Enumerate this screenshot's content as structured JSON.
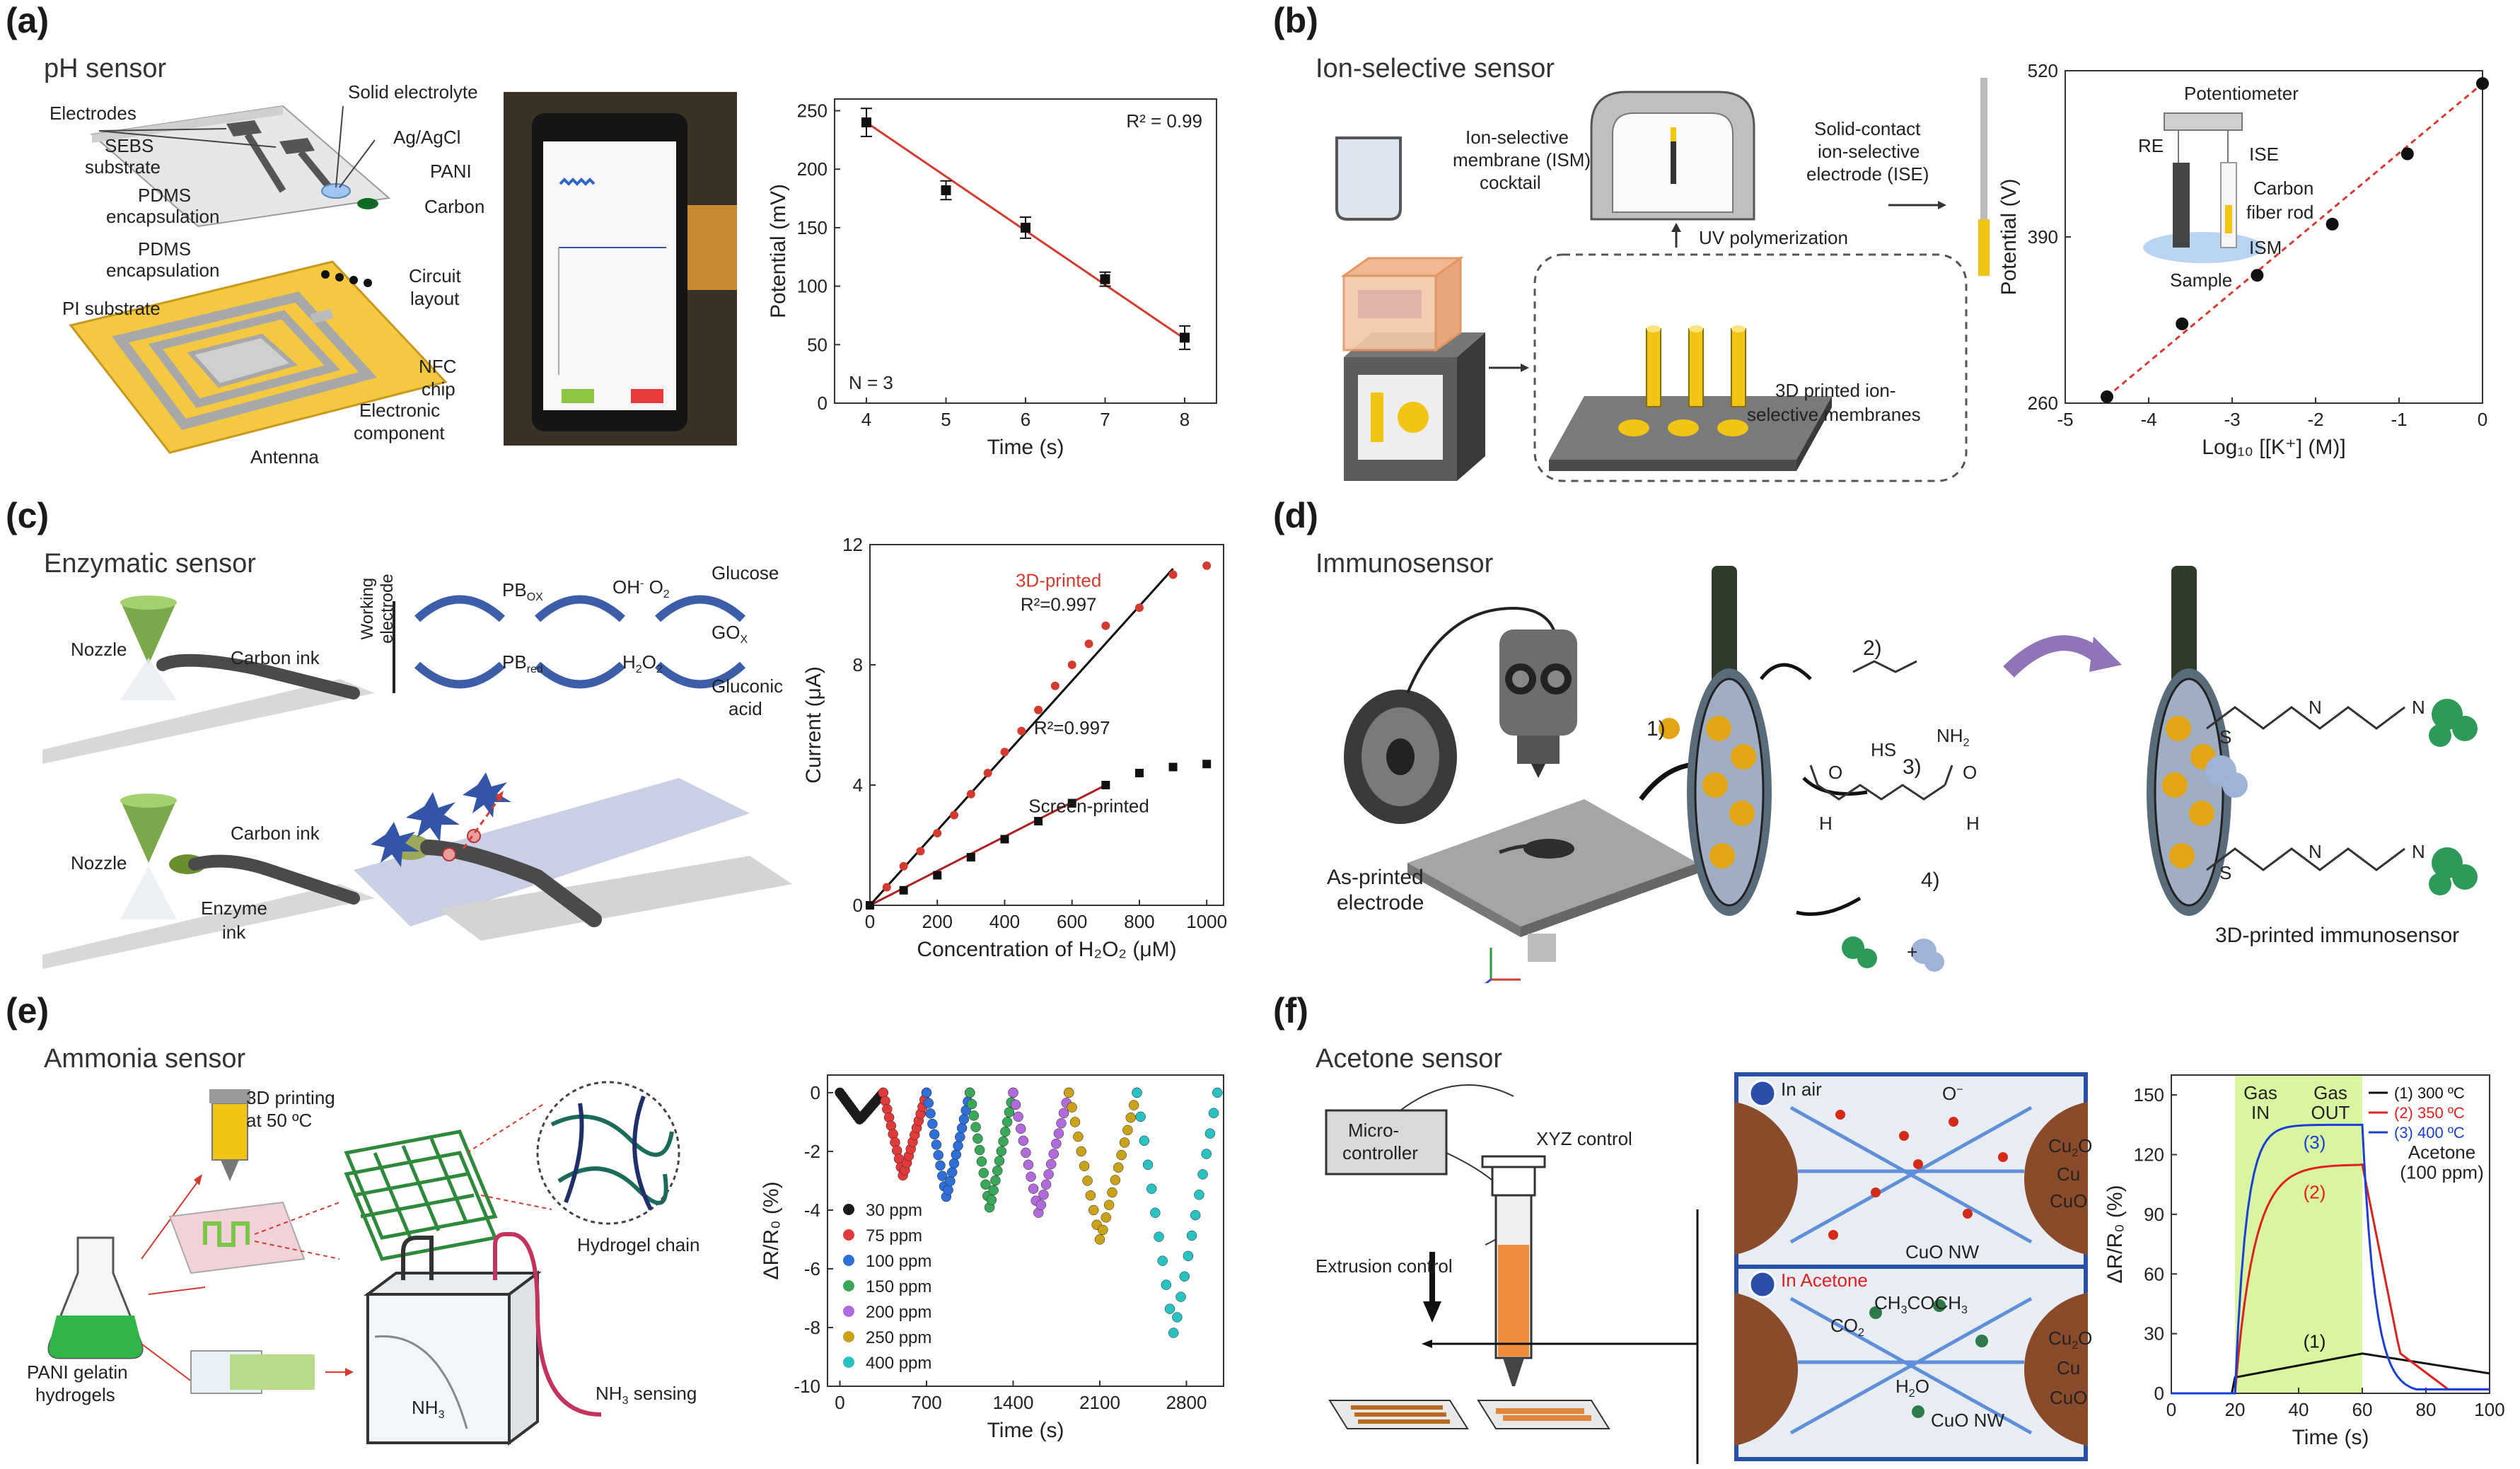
{
  "panels": {
    "a": {
      "letter": "(a)",
      "title": "pH sensor",
      "labels": [
        "Electrodes",
        "Solid electrolyte",
        "SEBS",
        "substrate",
        "Ag/AgCl",
        "PDMS",
        "encapsulation",
        "PANI",
        "Carbon",
        "PDMS",
        "encapsulation",
        "Circuit",
        "layout",
        "PI substrate",
        "NFC",
        "chip",
        "Electronic",
        "component",
        "Antenna"
      ],
      "phone_buttons": [
        "",
        ""
      ]
    },
    "b": {
      "letter": "(b)",
      "title": "Ion-selective sensor",
      "labels": {
        "ism": [
          "Ion-selective",
          "membrane (ISM)",
          "cocktail"
        ],
        "ise": [
          "Solid-contact",
          "ion-selective",
          "electrode (ISE)"
        ],
        "uv": "UV polymerization",
        "printed": [
          "3D printed ion-",
          "selective membranes"
        ],
        "inset": [
          "Potentiometer",
          "RE",
          "ISE",
          "Carbon",
          "fiber rod",
          "ISM",
          "Sample"
        ]
      }
    },
    "c": {
      "letter": "(c)",
      "title": "Enzymatic sensor",
      "labels": {
        "nozzle1": "Nozzle",
        "carbon1": "Carbon ink",
        "nozzle2": "Nozzle",
        "carbon2": "Carbon ink",
        "enzyme": [
          "Enzyme",
          "ink"
        ],
        "working": [
          "Working",
          "electrode"
        ],
        "pbox": "PB",
        "pbox_sub": "OX",
        "pbred": "PB",
        "pbred_sub": "red",
        "oh": "OH",
        "oh_sup": "-",
        "o2": "O",
        "o2_sub": "2",
        "h2o2": "H",
        "glucose": "Glucose",
        "gox": "GO",
        "gox_sub": "X",
        "gluconic": [
          "Gluconic",
          "acid"
        ],
        "glu": "Glu"
      }
    },
    "d": {
      "letter": "(d)",
      "title": "Immunosensor",
      "labels": {
        "asprinted": [
          "As-printed",
          "electrode"
        ],
        "step1": "1)",
        "step2": "2)",
        "step3": "3)",
        "step4": "4)",
        "final": "3D-printed immunosensor",
        "hs": "HS",
        "nh2": "NH",
        "h": "H",
        "o": "O",
        "n": "N",
        "s": "S",
        "plus": "+"
      }
    },
    "e": {
      "letter": "(e)",
      "title": "Ammonia sensor",
      "labels": {
        "print": [
          "3D printing",
          "at 50 ºC"
        ],
        "hydrogel": "Hydrogel chain",
        "pani": [
          "PANI gelatin",
          "hydrogels"
        ],
        "nh3": "NH",
        "nh3sense": "NH",
        "sensing": " sensing"
      }
    },
    "f": {
      "letter": "(f)",
      "title": "Acetone sensor",
      "labels": {
        "micro": [
          "Micro-",
          "controller"
        ],
        "xyz": "XYZ control",
        "extrusion": "Extrusion control",
        "inair": "In air",
        "oxy": "O",
        "cu2o": "Cu",
        "cu": "Cu",
        "cuo": "CuO",
        "cuonw": "CuO NW",
        "inacetone": "In Acetone",
        "ch3": "CH",
        "co2": "CO",
        "h2o": "H"
      }
    }
  },
  "chart_data": [
    {
      "id": "a",
      "type": "line",
      "x": [
        4,
        5,
        6,
        7,
        8
      ],
      "y": [
        240,
        182,
        150,
        106,
        56
      ],
      "yerr": [
        12,
        8,
        9,
        6,
        10
      ],
      "fit": {
        "x": [
          4,
          8
        ],
        "y": [
          240,
          55
        ]
      },
      "xlabel": "Time (s)",
      "ylabel": "Potential (mV)",
      "xlim": [
        3.6,
        8.4
      ],
      "ylim": [
        0,
        260
      ],
      "xticks": [
        4,
        5,
        6,
        7,
        8
      ],
      "yticks": [
        0,
        50,
        100,
        150,
        200,
        250
      ],
      "annotations": [
        "R² = 0.99",
        "N = 3"
      ],
      "colors": {
        "line": "#d43a2f",
        "points": "#111111"
      }
    },
    {
      "id": "b",
      "type": "scatter",
      "x": [
        -4.5,
        -3.6,
        -2.7,
        -1.8,
        -0.9,
        0
      ],
      "y": [
        265,
        322,
        360,
        400,
        455,
        510
      ],
      "xlabel": "Log₁₀ [[K⁺] (M)]",
      "ylabel": "Potential (V)",
      "xlim": [
        -5,
        0
      ],
      "ylim": [
        260,
        520
      ],
      "xticks": [
        -5,
        -4,
        -3,
        -2,
        -1,
        0
      ],
      "yticks": [
        260,
        390,
        520
      ],
      "colors": {
        "line": "#d43a2f",
        "points": "#111111"
      }
    },
    {
      "id": "c",
      "type": "scatter",
      "series": [
        {
          "name": "3D-printed",
          "x": [
            0,
            50,
            100,
            150,
            200,
            250,
            300,
            350,
            400,
            450,
            500,
            550,
            600,
            650,
            700,
            800,
            900,
            1000
          ],
          "y": [
            0,
            0.6,
            1.3,
            1.8,
            2.4,
            3.0,
            3.7,
            4.4,
            5.1,
            5.8,
            6.5,
            7.3,
            8.0,
            8.7,
            9.3,
            9.9,
            11.0,
            11.3
          ],
          "color": "#d43a2f"
        },
        {
          "name": "Screen-printed",
          "x": [
            0,
            100,
            200,
            300,
            400,
            500,
            600,
            700,
            800,
            900,
            1000
          ],
          "y": [
            0,
            0.5,
            1.0,
            1.6,
            2.2,
            2.8,
            3.4,
            4.0,
            4.4,
            4.6,
            4.7
          ],
          "color": "#111111"
        }
      ],
      "xlabel": "Concentration of H₂O₂ (μM)",
      "ylabel": "Current (μA)",
      "xlim": [
        0,
        1050
      ],
      "ylim": [
        0,
        12
      ],
      "xticks": [
        0,
        200,
        400,
        600,
        800,
        1000
      ],
      "yticks": [
        0,
        4,
        8,
        12
      ],
      "annotations": [
        "3D-printed",
        "R²=0.997",
        "R²=0.997",
        "Screen-printed"
      ]
    },
    {
      "id": "e",
      "type": "line",
      "series": [
        {
          "name": "30 ppm",
          "color": "#1a1a1a",
          "t0": 0,
          "t1": 350,
          "depth": -1.0
        },
        {
          "name": "75 ppm",
          "color": "#e03a3a",
          "t0": 350,
          "t1": 700,
          "depth": -3.1
        },
        {
          "name": "100 ppm",
          "color": "#2e6fd8",
          "t0": 700,
          "t1": 1050,
          "depth": -3.9
        },
        {
          "name": "150 ppm",
          "color": "#3aa75a",
          "t0": 1050,
          "t1": 1400,
          "depth": -4.3
        },
        {
          "name": "200 ppm",
          "color": "#b06ad9",
          "t0": 1400,
          "t1": 1850,
          "depth": -4.5
        },
        {
          "name": "250 ppm",
          "color": "#c9a21a",
          "t0": 1850,
          "t1": 2400,
          "depth": -5.5
        },
        {
          "name": "400 ppm",
          "color": "#29c1c1",
          "t0": 2400,
          "t1": 3050,
          "depth": -9.0
        }
      ],
      "xlabel": "Time (s)",
      "ylabel": "ΔR/R₀ (%)",
      "xlim": [
        -100,
        3100
      ],
      "ylim": [
        -10,
        0.6
      ],
      "xticks": [
        0,
        700,
        1400,
        2100,
        2800
      ],
      "yticks": [
        0,
        -2,
        -4,
        -6,
        -8,
        -10
      ]
    },
    {
      "id": "f",
      "type": "line",
      "series": [
        {
          "name": "(1) 300 ºC",
          "color": "#111111",
          "label": "(1)"
        },
        {
          "name": "(2) 350 ºC",
          "color": "#e02020",
          "label": "(2)"
        },
        {
          "name": "(3) 400 ºC",
          "color": "#1a3fd8",
          "label": "(3)"
        }
      ],
      "xlabel": "Time (s)",
      "ylabel": "ΔR/R₀ (%)",
      "xlim": [
        0,
        100
      ],
      "ylim": [
        0,
        160
      ],
      "xticks": [
        0,
        20,
        40,
        60,
        80,
        100
      ],
      "yticks": [
        0,
        30,
        60,
        90,
        120,
        150
      ],
      "annotations": [
        "Gas",
        "IN",
        "Gas",
        "OUT",
        "Acetone",
        "(100 ppm)"
      ],
      "gas_window": [
        20,
        60
      ],
      "colors": {
        "window": "#d9f5a0"
      }
    }
  ]
}
